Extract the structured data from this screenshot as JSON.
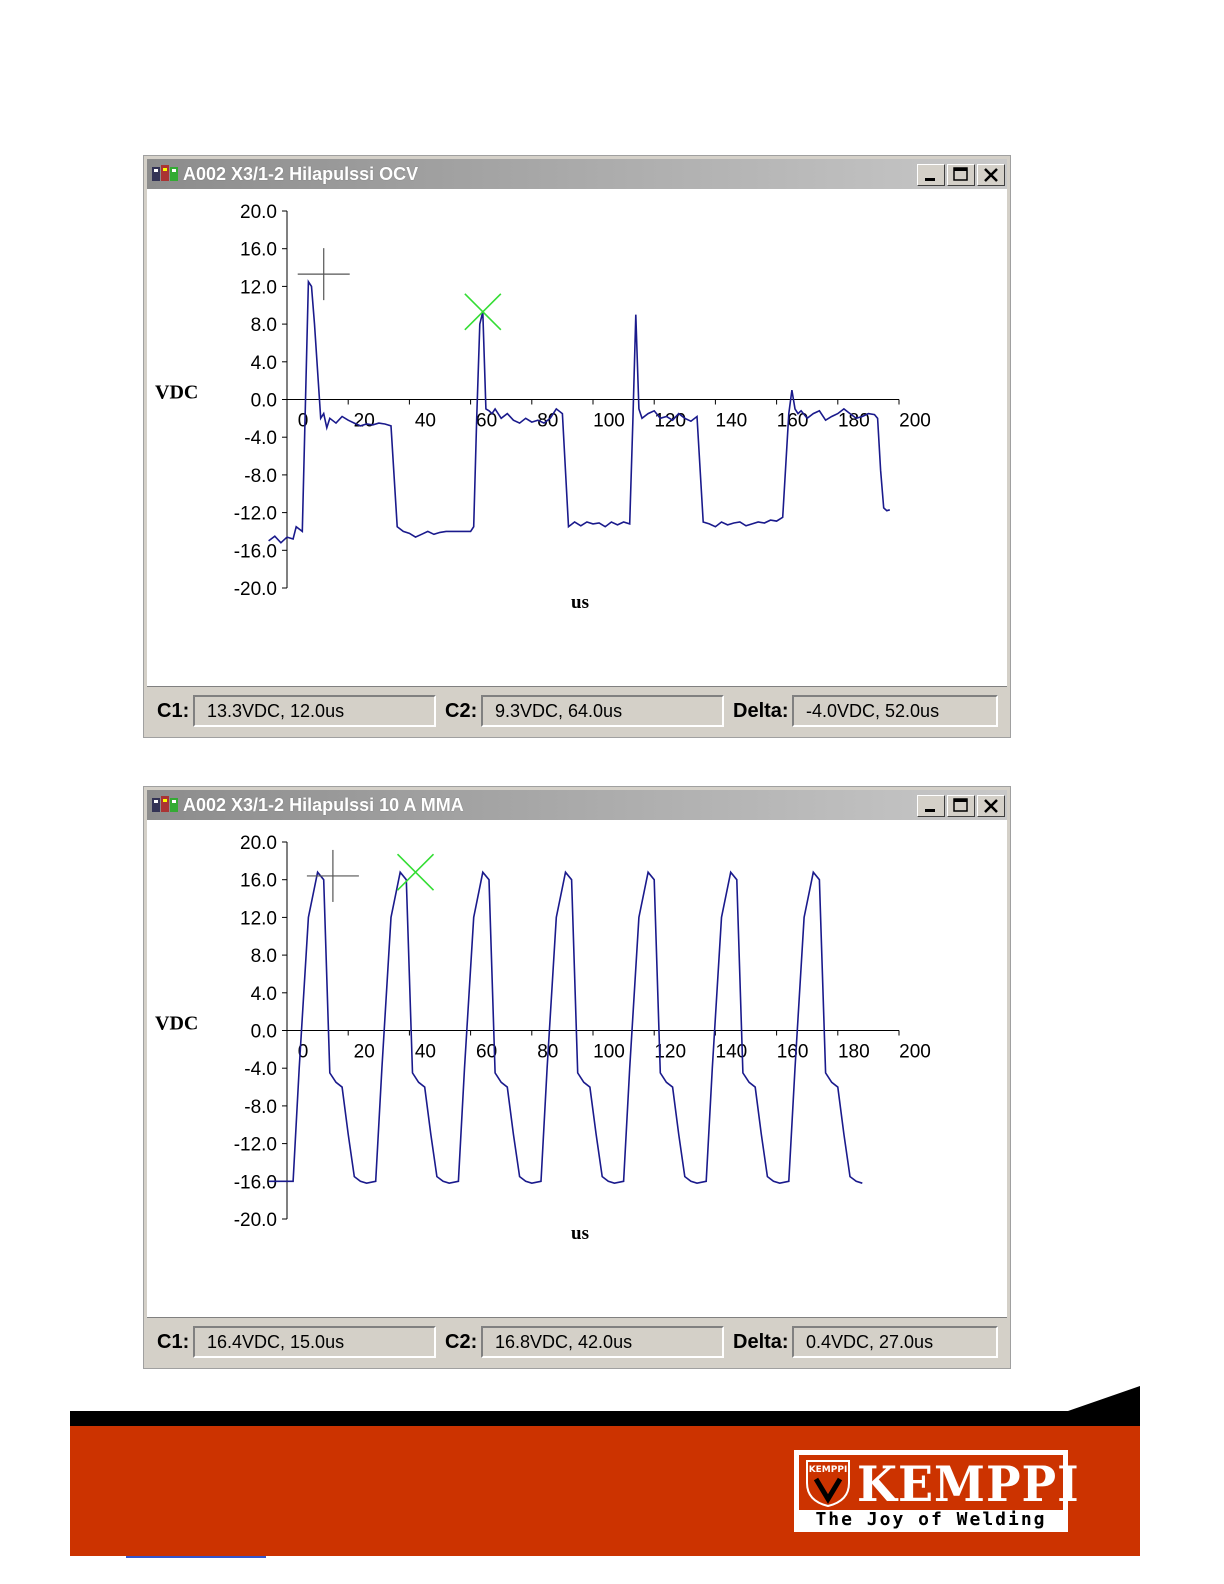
{
  "windows": [
    {
      "title": "A002 X3/1-2 Hilapulssi OCV",
      "status": {
        "c1_label": "C1:",
        "c1_value": "13.3VDC,  12.0us",
        "c2_label": "C2:",
        "c2_value": "9.3VDC,  64.0us",
        "delta_label": "Delta:",
        "delta_value": "-4.0VDC,  52.0us"
      }
    },
    {
      "title": "A002 X3/1-2 Hilapulssi 10 A MMA",
      "status": {
        "c1_label": "C1:",
        "c1_value": "16.4VDC,  15.0us",
        "c2_label": "C2:",
        "c2_value": "16.8VDC,  42.0us",
        "delta_label": "Delta:",
        "delta_value": "0.4VDC,  27.0us"
      }
    }
  ],
  "chart_data": [
    {
      "type": "line",
      "ylabel": "VDC",
      "xlabel": "us",
      "xlim": [
        0,
        200
      ],
      "ylim": [
        -20,
        20
      ],
      "xticks": [
        "0",
        "20",
        "40",
        "60",
        "80",
        "100",
        "120",
        "140",
        "160",
        "180",
        "200"
      ],
      "yticks": [
        "20.0",
        "16.0",
        "12.0",
        "8.0",
        "4.0",
        "0.0",
        "-4.0",
        "-8.0",
        "-12.0",
        "-16.0",
        "-20.0"
      ],
      "series_color": "#1a1a8c",
      "cursor1": {
        "x": 12.0,
        "y": 13.3,
        "marker": "plus"
      },
      "cursor2": {
        "x": 64.0,
        "y": 9.3,
        "marker": "x",
        "color": "#33dd33"
      },
      "x": [
        -6,
        -4,
        -2,
        0,
        2,
        3,
        5,
        7,
        8,
        9,
        11,
        12,
        13,
        14,
        16,
        18,
        20,
        22,
        24,
        26,
        28,
        30,
        32,
        34,
        36,
        38,
        40,
        42,
        44,
        46,
        48,
        50,
        52,
        54,
        56,
        58,
        60,
        61,
        62,
        63,
        64,
        65,
        66,
        67,
        68,
        70,
        72,
        74,
        76,
        78,
        80,
        82,
        84,
        86,
        88,
        90,
        92,
        94,
        96,
        98,
        100,
        102,
        104,
        106,
        108,
        110,
        112,
        113,
        114,
        115,
        116,
        118,
        120,
        122,
        124,
        126,
        128,
        130,
        132,
        134,
        136,
        138,
        140,
        142,
        144,
        146,
        148,
        150,
        152,
        154,
        156,
        158,
        160,
        162,
        164,
        165,
        166,
        167,
        168,
        170,
        172,
        174,
        176,
        178,
        180,
        182,
        184,
        186,
        188,
        190,
        192,
        193,
        194,
        195,
        196,
        197
      ],
      "y": [
        -15,
        -14.5,
        -15.2,
        -14.6,
        -14.8,
        -13.5,
        -14,
        12.5,
        12,
        8,
        -2,
        -1.5,
        -3,
        -2,
        -2.5,
        -1.8,
        -2.2,
        -2.5,
        -2.8,
        -2.6,
        -2.7,
        -2.5,
        -2.6,
        -2.8,
        -13.5,
        -14,
        -14.2,
        -14.6,
        -14.3,
        -14,
        -14.3,
        -14.1,
        -14,
        -14,
        -14,
        -14,
        -14,
        -13.5,
        -2,
        8,
        9.3,
        -1,
        -1.2,
        -1.5,
        -1,
        -2,
        -1.5,
        -2.2,
        -2.5,
        -2,
        -2.4,
        -2.2,
        -2.5,
        -2,
        -1,
        -1.5,
        -13.5,
        -13,
        -13.4,
        -13,
        -13.2,
        -13.1,
        -13.5,
        -13,
        -13.3,
        -13,
        -13.2,
        -2.5,
        9,
        -1,
        -2,
        -1.5,
        -1.2,
        -2,
        -1.8,
        -2.2,
        -1.5,
        -2,
        -2.3,
        -1.8,
        -13,
        -13.2,
        -13.5,
        -13,
        -13.3,
        -13.1,
        -13,
        -13.4,
        -13.2,
        -13,
        -13.1,
        -12.8,
        -12.9,
        -12.5,
        -1.5,
        1,
        -1,
        -1.5,
        -1.2,
        -2,
        -1.5,
        -1.2,
        -2.2,
        -1.8,
        -1.5,
        -1,
        -1.5,
        -2,
        -1.8,
        -1.5,
        -1.6,
        -2,
        -7.5,
        -11.5,
        -11.8,
        -11.7
      ],
      "x_axis_at_y0": true
    },
    {
      "type": "line",
      "ylabel": "VDC",
      "xlabel": "us",
      "xlim": [
        0,
        200
      ],
      "ylim": [
        -20,
        20
      ],
      "xticks": [
        "0",
        "20",
        "40",
        "60",
        "80",
        "100",
        "120",
        "140",
        "160",
        "180",
        "200"
      ],
      "yticks": [
        "20.0",
        "16.0",
        "12.0",
        "8.0",
        "4.0",
        "0.0",
        "-4.0",
        "-8.0",
        "-12.0",
        "-16.0",
        "-20.0"
      ],
      "series_color": "#1a1a8c",
      "cursor1": {
        "x": 15.0,
        "y": 16.4,
        "marker": "plus"
      },
      "cursor2": {
        "x": 42.0,
        "y": 16.8,
        "marker": "x",
        "color": "#33dd33"
      },
      "period": 27,
      "pulse_count": 7,
      "pulse_start": 0,
      "x_axis_at_y0": true
    }
  ],
  "footer": {
    "logo_word": "KEMPPI",
    "logo_tagline": "The Joy of Welding",
    "shield_text": "KEMPPI"
  }
}
